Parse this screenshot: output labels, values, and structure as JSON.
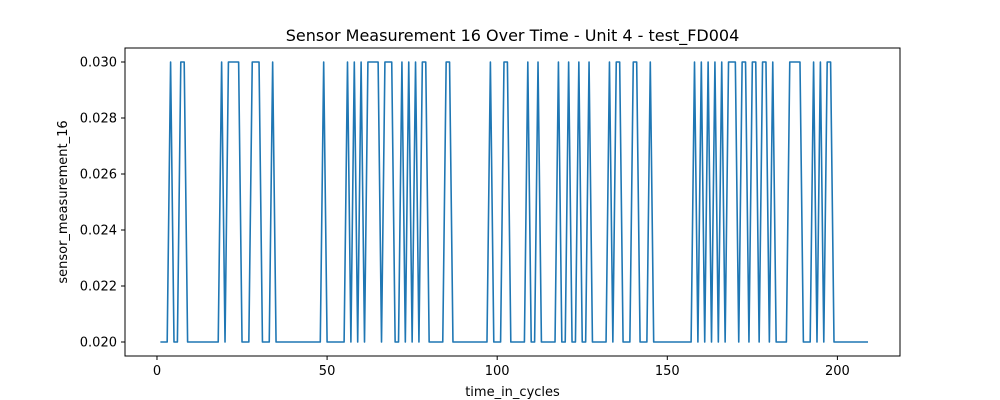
{
  "chart_data": {
    "type": "line",
    "title": "Sensor Measurement 16 Over Time - Unit 4 - test_FD004",
    "xlabel": "time_in_cycles",
    "ylabel": "sensor_measurement_16",
    "xlim": [
      -9.4,
      218.4
    ],
    "ylim": [
      0.0195,
      0.0305
    ],
    "xticks": [
      0,
      50,
      100,
      150,
      200
    ],
    "xtick_labels": [
      "0",
      "50",
      "100",
      "150",
      "200"
    ],
    "yticks": [
      0.02,
      0.022,
      0.024,
      0.026,
      0.028,
      0.03
    ],
    "ytick_labels": [
      "0.020",
      "0.022",
      "0.024",
      "0.026",
      "0.028",
      "0.030"
    ],
    "grid": false,
    "colors": {
      "line": "#1f77b4",
      "axes": "#000000",
      "background": "#ffffff"
    },
    "series": [
      {
        "x_start": 1,
        "x_end": 209,
        "y_low": 0.02,
        "y_high": 0.03,
        "high_cycles": [
          4,
          7,
          8,
          19,
          21,
          22,
          23,
          24,
          28,
          29,
          30,
          34,
          49,
          56,
          58,
          60,
          62,
          63,
          64,
          65,
          67,
          68,
          69,
          72,
          74,
          76,
          78,
          79,
          85,
          86,
          98,
          102,
          103,
          109,
          112,
          118,
          121,
          124,
          127,
          133,
          135,
          136,
          140,
          141,
          145,
          158,
          160,
          162,
          164,
          166,
          168,
          169,
          170,
          172,
          173,
          175,
          176,
          178,
          179,
          181,
          186,
          187,
          188,
          189,
          193,
          195,
          197,
          198
        ]
      }
    ]
  }
}
